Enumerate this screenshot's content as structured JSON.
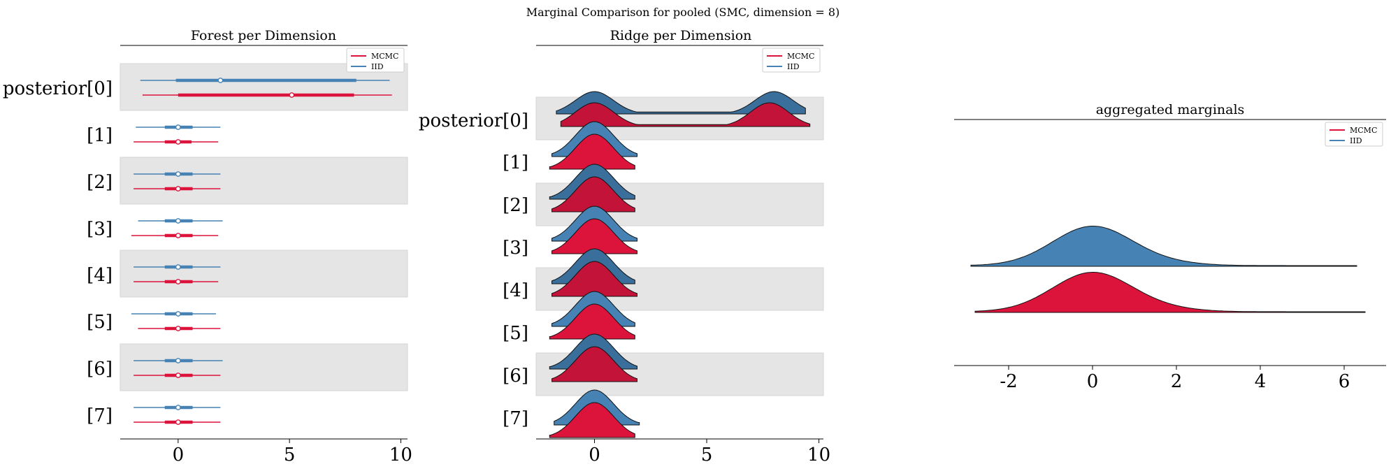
{
  "suptitle": "Marginal Comparison for pooled (SMC, dimension = 8)",
  "colors": {
    "mcmc": "#dc143c",
    "iid": "#4682b4",
    "band": "#e5e5e5"
  },
  "chart_data": [
    {
      "type": "forest",
      "title": "Forest per Dimension",
      "ylabels": [
        "posterior[0]",
        "[1]",
        "[2]",
        "[3]",
        "[4]",
        "[5]",
        "[6]",
        "[7]"
      ],
      "xticks": [
        0,
        5,
        10
      ],
      "xlim": [
        -2.6,
        10.3
      ],
      "legend": {
        "position": "top-right",
        "entries": [
          "MCMC",
          "IID"
        ]
      },
      "series": [
        {
          "name": "IID",
          "median": [
            1.9,
            0.0,
            0.0,
            0.0,
            0.0,
            0.0,
            0.0,
            0.0
          ],
          "inner": [
            [
              -0.1,
              8.0
            ],
            [
              -0.6,
              0.65
            ],
            [
              -0.6,
              0.65
            ],
            [
              -0.6,
              0.65
            ],
            [
              -0.6,
              0.65
            ],
            [
              -0.6,
              0.65
            ],
            [
              -0.6,
              0.65
            ],
            [
              -0.6,
              0.65
            ]
          ],
          "outer": [
            [
              -1.7,
              9.5
            ],
            [
              -1.9,
              1.9
            ],
            [
              -2.0,
              1.9
            ],
            [
              -1.8,
              2.0
            ],
            [
              -2.0,
              1.9
            ],
            [
              -2.1,
              1.7
            ],
            [
              -2.0,
              2.0
            ],
            [
              -2.0,
              1.9
            ]
          ]
        },
        {
          "name": "MCMC",
          "median": [
            5.1,
            0.0,
            0.0,
            0.0,
            0.0,
            0.0,
            0.0,
            0.0
          ],
          "inner": [
            [
              0.0,
              7.9
            ],
            [
              -0.6,
              0.6
            ],
            [
              -0.6,
              0.65
            ],
            [
              -0.6,
              0.65
            ],
            [
              -0.6,
              0.65
            ],
            [
              -0.6,
              0.65
            ],
            [
              -0.6,
              0.65
            ],
            [
              -0.6,
              0.65
            ]
          ],
          "outer": [
            [
              -1.6,
              9.6
            ],
            [
              -2.0,
              1.8
            ],
            [
              -2.0,
              1.9
            ],
            [
              -2.1,
              1.8
            ],
            [
              -2.0,
              1.8
            ],
            [
              -1.8,
              1.9
            ],
            [
              -2.0,
              1.9
            ],
            [
              -2.0,
              1.9
            ]
          ]
        }
      ]
    },
    {
      "type": "ridge",
      "title": "Ridge per Dimension",
      "ylabels": [
        "posterior[0]",
        "[1]",
        "[2]",
        "[3]",
        "[4]",
        "[5]",
        "[6]",
        "[7]"
      ],
      "xticks": [
        0,
        5,
        10
      ],
      "xlim": [
        -2.6,
        10.2
      ],
      "legend": {
        "position": "top-right",
        "entries": [
          "MCMC",
          "IID"
        ]
      },
      "series": [
        {
          "name": "IID",
          "range": [
            [
              -1.7,
              9.4
            ],
            [
              -1.9,
              1.9
            ],
            [
              -2.0,
              1.8
            ],
            [
              -1.9,
              1.9
            ],
            [
              -1.9,
              1.8
            ],
            [
              -1.9,
              1.8
            ],
            [
              -2.0,
              1.9
            ],
            [
              -1.8,
              2.0
            ]
          ],
          "modes": [
            [
              [
                0.0,
                0.8
              ],
              [
                8.0,
                0.8
              ]
            ],
            [
              [
                0.0,
                1.0
              ]
            ],
            [
              [
                0.0,
                1.0
              ]
            ],
            [
              [
                0.0,
                1.0
              ]
            ],
            [
              [
                0.0,
                1.0
              ]
            ],
            [
              [
                0.0,
                1.0
              ]
            ],
            [
              [
                0.0,
                1.0
              ]
            ],
            [
              [
                0.0,
                1.0
              ]
            ]
          ]
        },
        {
          "name": "MCMC",
          "range": [
            [
              -1.5,
              9.6
            ],
            [
              -2.0,
              1.8
            ],
            [
              -1.9,
              1.8
            ],
            [
              -1.9,
              1.9
            ],
            [
              -1.9,
              1.9
            ],
            [
              -2.0,
              1.8
            ],
            [
              -1.9,
              1.9
            ],
            [
              -2.0,
              1.8
            ]
          ],
          "modes": [
            [
              [
                0.0,
                0.85
              ],
              [
                7.8,
                0.85
              ]
            ],
            [
              [
                0.0,
                1.0
              ]
            ],
            [
              [
                0.0,
                1.0
              ]
            ],
            [
              [
                0.0,
                1.0
              ]
            ],
            [
              [
                0.0,
                1.0
              ]
            ],
            [
              [
                0.0,
                1.0
              ]
            ],
            [
              [
                0.0,
                1.0
              ]
            ],
            [
              [
                0.0,
                1.0
              ]
            ]
          ]
        }
      ]
    },
    {
      "type": "area",
      "title": "aggregated marginals",
      "xticks": [
        -2,
        0,
        2,
        4,
        6
      ],
      "xlim": [
        -3.3,
        7.0
      ],
      "legend": {
        "position": "top-right",
        "entries": [
          "MCMC",
          "IID"
        ]
      },
      "series": [
        {
          "name": "IID",
          "range": [
            -2.9,
            6.3
          ]
        },
        {
          "name": "MCMC",
          "range": [
            -2.8,
            6.5
          ]
        }
      ]
    }
  ]
}
